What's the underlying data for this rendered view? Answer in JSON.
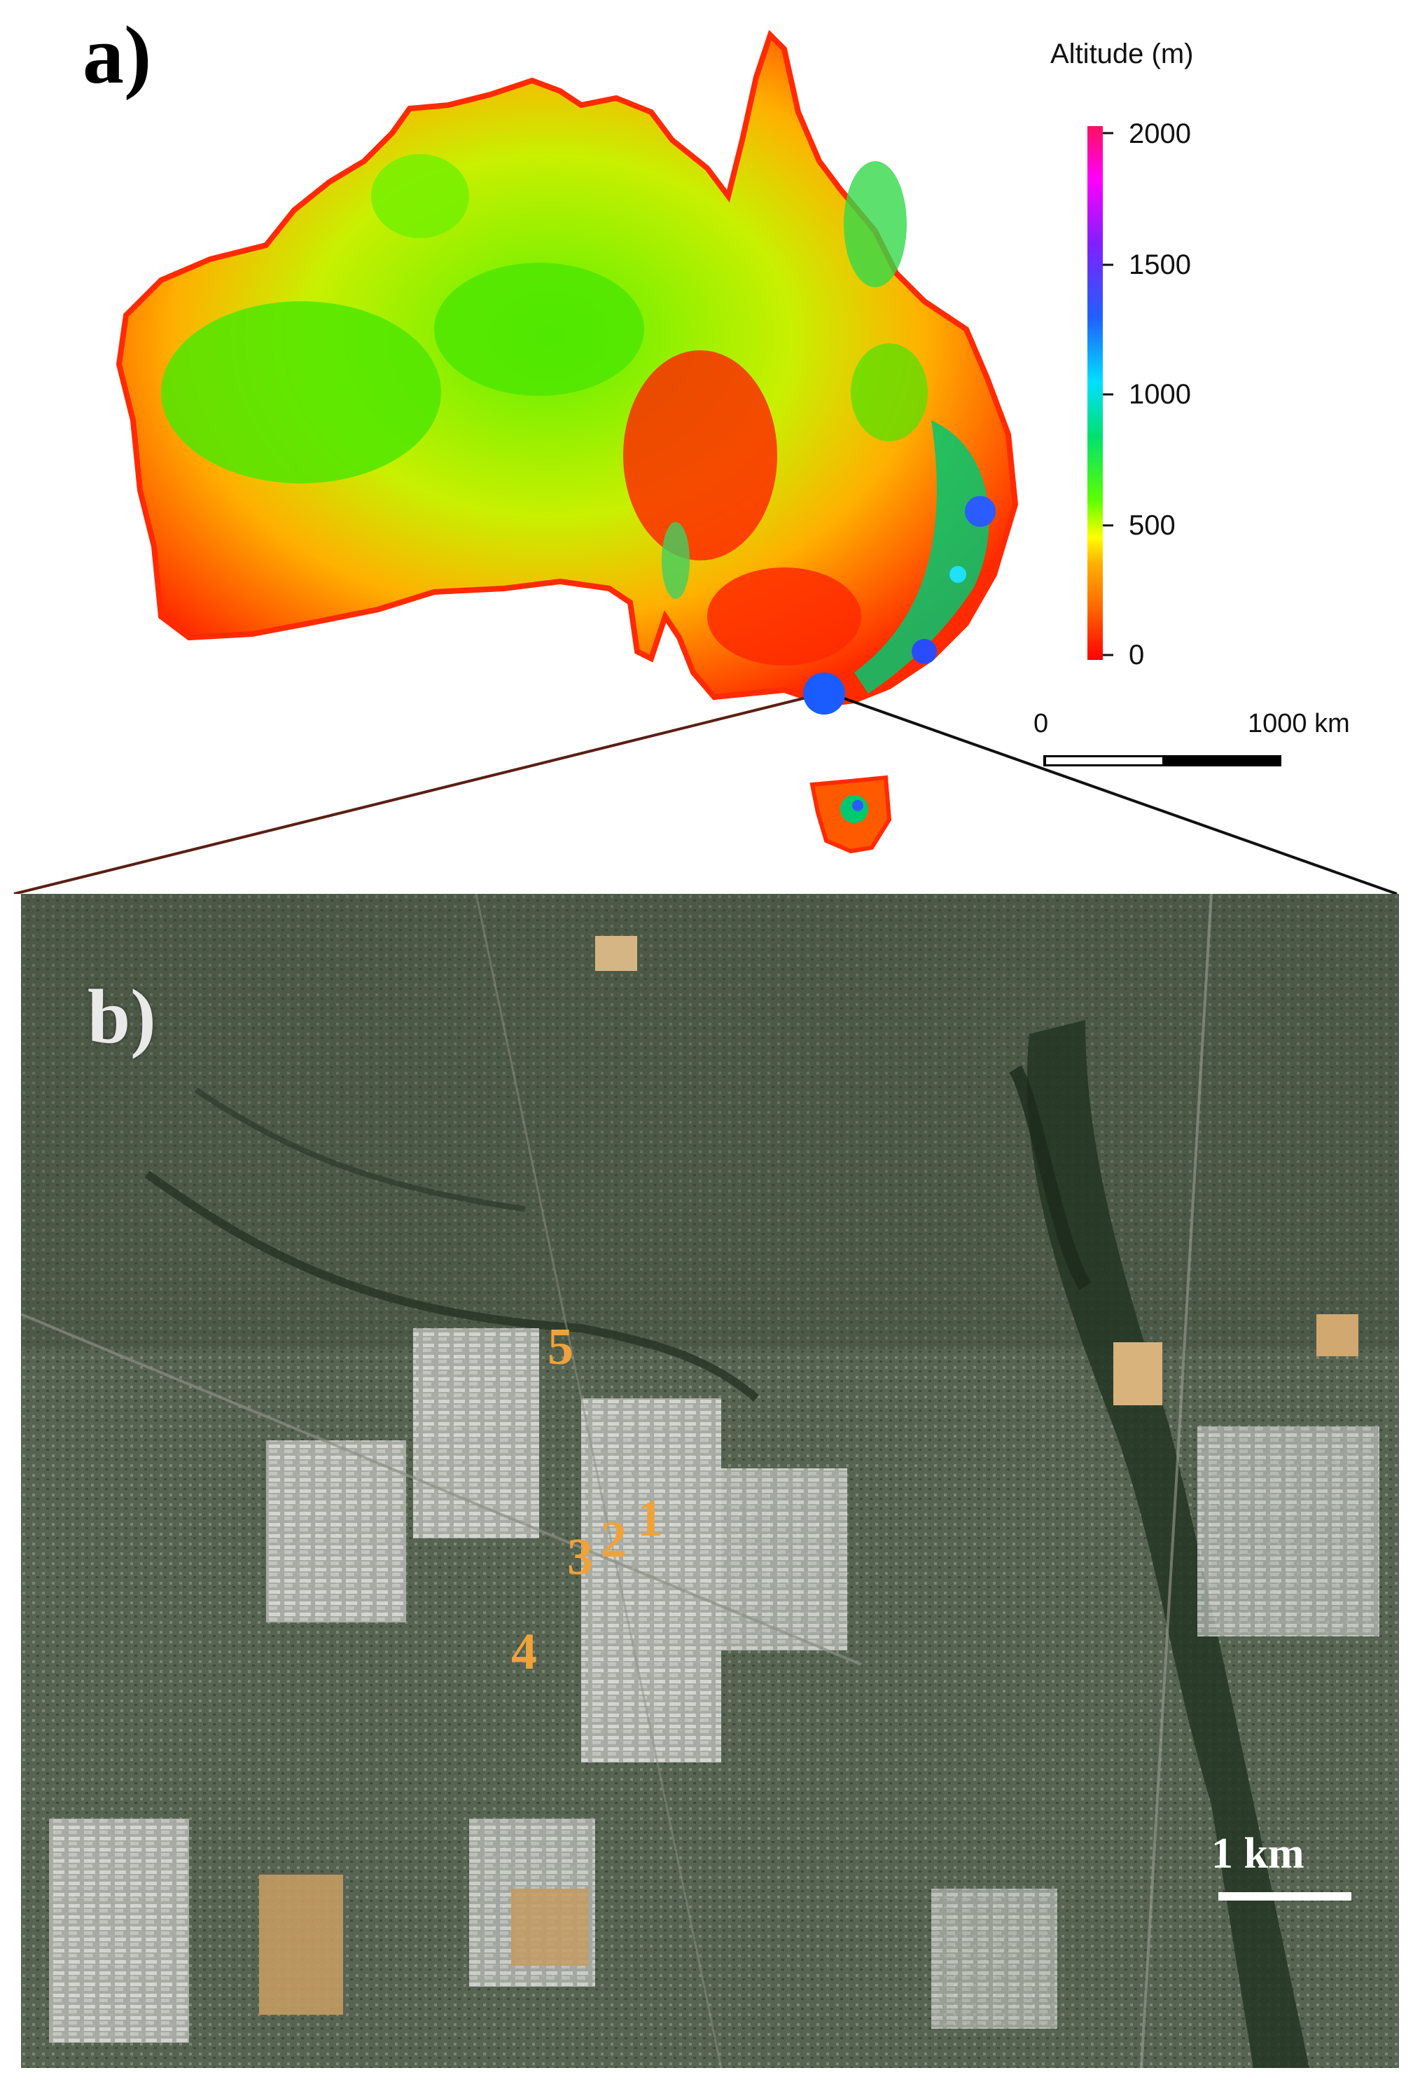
{
  "panel_a": {
    "label": "a)",
    "legend": {
      "title": "Altitude (m)",
      "ticks": [
        "2000",
        "1500",
        "1000",
        "500",
        "0"
      ],
      "color_stops": [
        "#ff0000",
        "#ff6a00",
        "#ffb000",
        "#ffff00",
        "#5cff00",
        "#00e070",
        "#00e0ff",
        "#2060ff",
        "#8020ff",
        "#ff00ff",
        "#ff1060"
      ]
    },
    "scale_bar": {
      "start_label": "0",
      "end_label": "1000 km"
    },
    "marker_color": "#1a5cff"
  },
  "panel_b": {
    "label": "b)",
    "sites": [
      "1",
      "2",
      "3",
      "4",
      "5"
    ],
    "site_color": "#f0a23a",
    "scale_bar_label": "1 km"
  }
}
